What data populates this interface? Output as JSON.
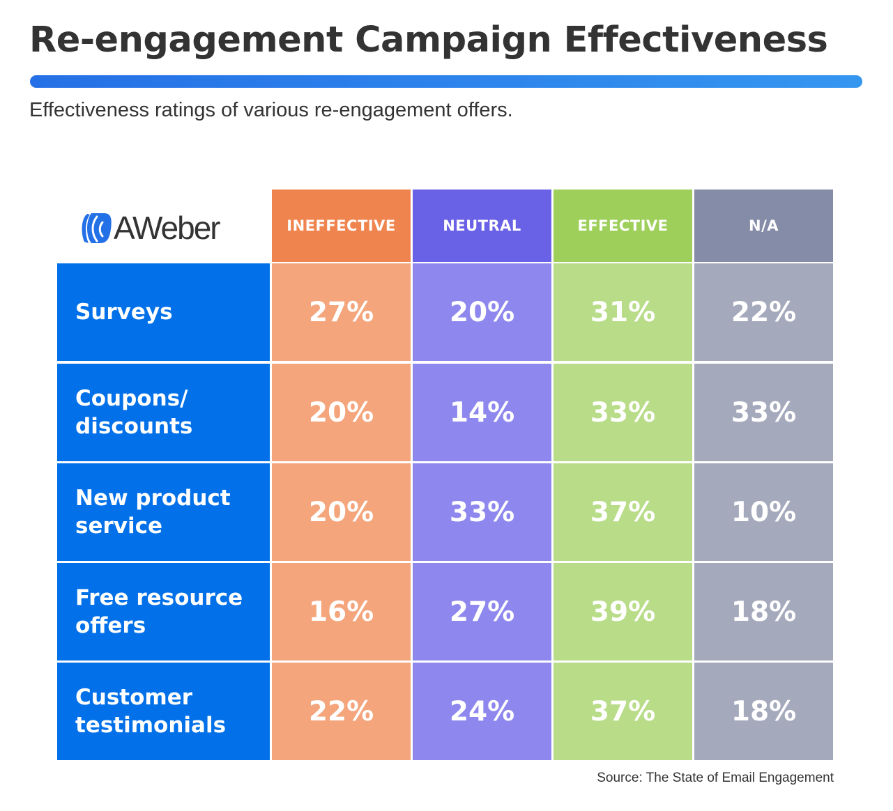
{
  "title": "Re-engagement Campaign Effectiveness",
  "subtitle": "Effectiveness ratings of various re-engagement offers.",
  "logo": "AWeber",
  "source": "Source: The State of Email Engagement",
  "colors": {
    "title_bar_start": "#2570E6",
    "title_bar_end": "#3596F0",
    "row_label_bg": "#0270E8",
    "ineffective_header": "#F0844E",
    "ineffective_cell": "#F4A57C",
    "neutral_header": "#6A62E6",
    "neutral_cell": "#8E88EE",
    "effective_header": "#9ECF5B",
    "effective_cell": "#B8DC88",
    "na_header": "#858CA8",
    "na_cell": "#A5A9BC"
  },
  "chart_data": {
    "type": "table",
    "columns": [
      "INEFFECTIVE",
      "NEUTRAL",
      "EFFECTIVE",
      "N/A"
    ],
    "rows": [
      {
        "label": "Surveys",
        "label_lines": [
          "Surveys"
        ],
        "values": [
          "27%",
          "20%",
          "31%",
          "22%"
        ]
      },
      {
        "label": "Coupons/ discounts",
        "label_lines": [
          "Coupons/",
          "discounts"
        ],
        "values": [
          "20%",
          "14%",
          "33%",
          "33%"
        ]
      },
      {
        "label": "New product service",
        "label_lines": [
          "New product",
          "service"
        ],
        "values": [
          "20%",
          "33%",
          "37%",
          "10%"
        ]
      },
      {
        "label": "Free resource offers",
        "label_lines": [
          "Free resource",
          "offers"
        ],
        "values": [
          "16%",
          "27%",
          "39%",
          "18%"
        ]
      },
      {
        "label": "Customer testimonials",
        "label_lines": [
          "Customer",
          "testimonials"
        ],
        "values": [
          "22%",
          "24%",
          "37%",
          "18%"
        ]
      }
    ]
  }
}
